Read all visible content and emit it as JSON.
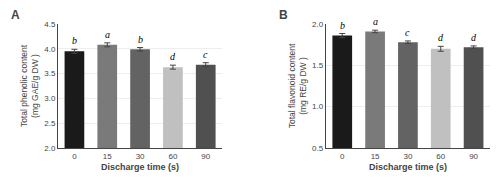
{
  "chart_data": [
    {
      "type": "bar",
      "title": "A",
      "categories": [
        "0",
        "15",
        "30",
        "60",
        "90"
      ],
      "values": [
        3.95,
        4.08,
        3.99,
        3.63,
        3.68
      ],
      "errors": [
        0.04,
        0.04,
        0.035,
        0.04,
        0.04
      ],
      "annotations": [
        "b",
        "a",
        "b",
        "d",
        "c"
      ],
      "colors": [
        "#1a1a1a",
        "#7a7a7a",
        "#636363",
        "#c0c0c0",
        "#505050"
      ],
      "ylabel": "Total phenolic content\n(mg GAE/g DW )",
      "xlabel": "Discharge time (s)",
      "ylim": [
        2.0,
        4.5
      ],
      "yticks": [
        {
          "value": 2.0,
          "label": "2.0"
        },
        2.5,
        {
          "value": 3.0,
          "label": "3.0"
        },
        3.5,
        {
          "value": 4.0,
          "label": "4.0"
        },
        4.5
      ]
    },
    {
      "type": "bar",
      "title": "B",
      "categories": [
        "0",
        "15",
        "30",
        "60",
        "90"
      ],
      "values": [
        1.86,
        1.91,
        1.78,
        1.7,
        1.72
      ],
      "errors": [
        0.025,
        0.015,
        0.015,
        0.03,
        0.015
      ],
      "annotations": [
        "b",
        "a",
        "c",
        "d",
        "d"
      ],
      "colors": [
        "#1a1a1a",
        "#7a7a7a",
        "#636363",
        "#c0c0c0",
        "#505050"
      ],
      "ylabel": "Total flavonoid content\n(mg RE/g DW )",
      "xlabel": "Discharge time (s)",
      "ylim": [
        0.5,
        2.0
      ],
      "yticks": [
        0.5,
        {
          "value": 1.0,
          "label": "1.0"
        },
        1.5,
        {
          "value": 2.0,
          "label": "2.0"
        }
      ]
    }
  ]
}
